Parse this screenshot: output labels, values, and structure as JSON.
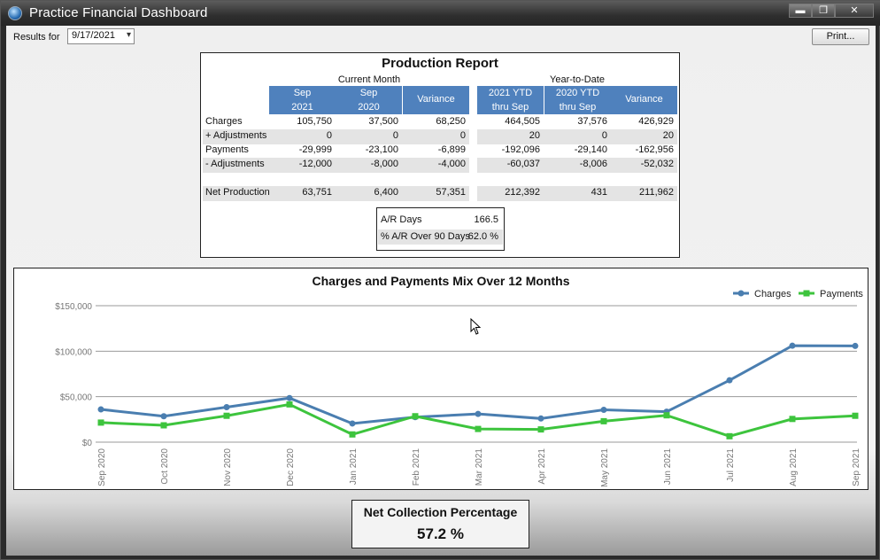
{
  "window": {
    "title": "Practice Financial Dashboard",
    "buttons": [
      "▬",
      "❐",
      "✕"
    ]
  },
  "toolbar": {
    "results_label": "Results for",
    "date_value": "9/17/2021",
    "print_label": "Print..."
  },
  "report": {
    "title": "Production Report",
    "current_month_label": "Current Month",
    "ytd_label": "Year-to-Date",
    "current_cols": [
      {
        "line1": "Sep",
        "line2": "2021"
      },
      {
        "line1": "Sep",
        "line2": "2020"
      },
      {
        "line1": "Variance",
        "line2": ""
      }
    ],
    "ytd_cols": [
      {
        "line1": "2021 YTD",
        "line2": "thru Sep"
      },
      {
        "line1": "2020 YTD",
        "line2": "thru Sep"
      },
      {
        "line1": "Variance",
        "line2": ""
      }
    ],
    "rows": [
      {
        "label": "Charges",
        "cur": [
          "105,750",
          "37,500",
          "68,250"
        ],
        "ytd": [
          "464,505",
          "37,576",
          "426,929"
        ]
      },
      {
        "label": "+ Adjustments",
        "cur": [
          "0",
          "0",
          "0"
        ],
        "ytd": [
          "20",
          "0",
          "20"
        ]
      },
      {
        "label": "Payments",
        "cur": [
          "-29,999",
          "-23,100",
          "-6,899"
        ],
        "ytd": [
          "-192,096",
          "-29,140",
          "-162,956"
        ]
      },
      {
        "label": "- Adjustments",
        "cur": [
          "-12,000",
          "-8,000",
          "-4,000"
        ],
        "ytd": [
          "-60,037",
          "-8,006",
          "-52,032"
        ]
      },
      {
        "label": "Net Production",
        "cur": [
          "63,751",
          "6,400",
          "57,351"
        ],
        "ytd": [
          "212,392",
          "431",
          "211,962"
        ]
      }
    ],
    "ar": [
      {
        "label": "A/R Days",
        "value": "166.5"
      },
      {
        "label": "% A/R Over 90 Days",
        "value": "62.0 %"
      }
    ]
  },
  "chart_data": {
    "type": "line",
    "title": "Charges and Payments Mix Over 12 Months",
    "categories": [
      "Sep 2020",
      "Oct 2020",
      "Nov 2020",
      "Dec 2020",
      "Jan 2021",
      "Feb 2021",
      "Mar 2021",
      "Apr 2021",
      "May 2021",
      "Jun 2021",
      "Jul 2021",
      "Aug 2021",
      "Sep 2021"
    ],
    "series": [
      {
        "name": "Charges",
        "color": "#4a7eb0",
        "marker": "circle",
        "values": [
          36000,
          28500,
          38500,
          48500,
          20500,
          27500,
          31000,
          26000,
          35500,
          33500,
          68000,
          106000,
          105750
        ]
      },
      {
        "name": "Payments",
        "color": "#3dc43d",
        "marker": "square",
        "values": [
          21500,
          18500,
          29000,
          41500,
          8500,
          28500,
          14500,
          14000,
          23000,
          29500,
          6500,
          25500,
          29000
        ]
      }
    ],
    "yticks": [
      "$150,000",
      "$100,000",
      "$50,000",
      "$0"
    ],
    "ylim": [
      0,
      150000
    ],
    "grid": true,
    "legend": "top-right"
  },
  "ncp": {
    "label": "Net Collection Percentage",
    "value": "57.2 %"
  }
}
